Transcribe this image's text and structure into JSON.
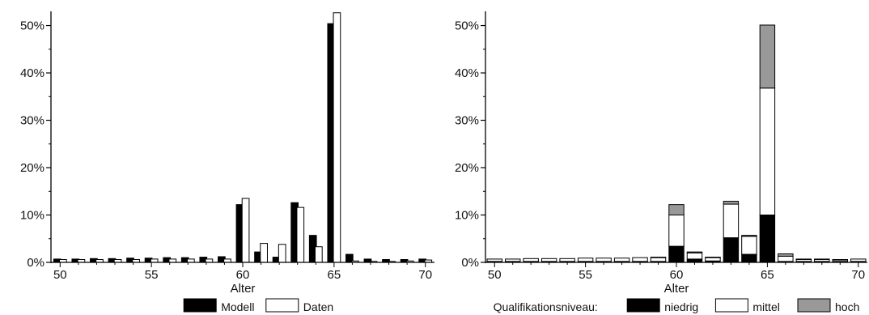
{
  "chart_data": [
    {
      "type": "bar",
      "xlabel": "Alter",
      "ylabel": "",
      "xlim": [
        49.5,
        70.5
      ],
      "ylim": [
        0,
        0.53
      ],
      "x_ticks": [
        50,
        55,
        60,
        65,
        70
      ],
      "y_ticks": [
        0,
        0.1,
        0.2,
        0.3,
        0.4,
        0.5
      ],
      "y_tick_labels": [
        "0%",
        "10%",
        "20%",
        "30%",
        "40%",
        "50%"
      ],
      "legend": {
        "position": "bottom-center",
        "title": "",
        "entries": [
          "Modell",
          "Daten"
        ]
      },
      "x": [
        50,
        51,
        52,
        53,
        54,
        55,
        56,
        57,
        58,
        59,
        60,
        61,
        62,
        63,
        64,
        65,
        66,
        67,
        68,
        69,
        70
      ],
      "series": [
        {
          "name": "Modell",
          "color": "#000000",
          "values": [
            0.007,
            0.007,
            0.008,
            0.008,
            0.009,
            0.009,
            0.01,
            0.01,
            0.011,
            0.012,
            0.122,
            0.022,
            0.011,
            0.126,
            0.057,
            0.504,
            0.017,
            0.007,
            0.006,
            0.006,
            0.007
          ]
        },
        {
          "name": "Daten",
          "color": "#ffffff",
          "values": [
            0.006,
            0.006,
            0.006,
            0.006,
            0.006,
            0.007,
            0.007,
            0.007,
            0.007,
            0.007,
            0.135,
            0.04,
            0.038,
            0.116,
            0.033,
            0.527,
            0.003,
            0.002,
            0.002,
            0.003,
            0.005
          ]
        }
      ]
    },
    {
      "type": "bar",
      "stacked": true,
      "xlabel": "Alter",
      "ylabel": "",
      "xlim": [
        49.5,
        70.5
      ],
      "ylim": [
        0,
        0.53
      ],
      "x_ticks": [
        50,
        55,
        60,
        65,
        70
      ],
      "y_ticks": [
        0,
        0.1,
        0.2,
        0.3,
        0.4,
        0.5
      ],
      "y_tick_labels": [
        "0%",
        "10%",
        "20%",
        "30%",
        "40%",
        "50%"
      ],
      "legend": {
        "position": "bottom-center",
        "title": "Qualifikationsniveau:",
        "entries": [
          "niedrig",
          "mittel",
          "hoch"
        ]
      },
      "x": [
        50,
        51,
        52,
        53,
        54,
        55,
        56,
        57,
        58,
        59,
        60,
        61,
        62,
        63,
        64,
        65,
        66,
        67,
        68,
        69,
        70
      ],
      "series": [
        {
          "name": "niedrig",
          "color": "#000000",
          "values": [
            0.002,
            0.002,
            0.002,
            0.002,
            0.002,
            0.002,
            0.002,
            0.002,
            0.002,
            0.002,
            0.034,
            0.007,
            0.003,
            0.052,
            0.017,
            0.1,
            0.002,
            0.002,
            0.002,
            0.002,
            0.002
          ]
        },
        {
          "name": "mittel",
          "color": "#ffffff",
          "values": [
            0.005,
            0.005,
            0.006,
            0.006,
            0.006,
            0.007,
            0.007,
            0.007,
            0.008,
            0.008,
            0.066,
            0.013,
            0.007,
            0.071,
            0.038,
            0.268,
            0.011,
            0.004,
            0.004,
            0.003,
            0.005
          ]
        },
        {
          "name": "hoch",
          "color": "#999999",
          "values": [
            0.0,
            0.0,
            0.0,
            0.0,
            0.0,
            0.0,
            0.0,
            0.0,
            0.0,
            0.001,
            0.022,
            0.002,
            0.001,
            0.006,
            0.002,
            0.133,
            0.005,
            0.001,
            0.001,
            0.001,
            0.0
          ]
        }
      ]
    }
  ]
}
